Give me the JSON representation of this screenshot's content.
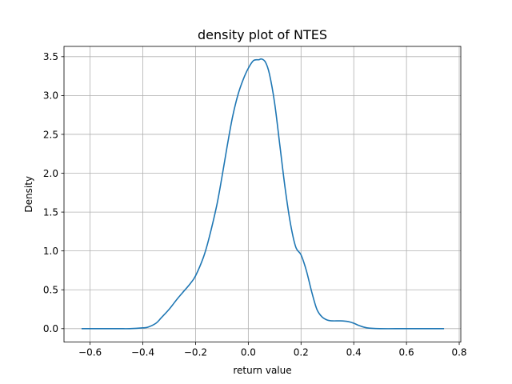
{
  "chart_data": {
    "type": "line",
    "title": "density plot of NTES",
    "xlabel": "return value",
    "ylabel": "Density",
    "xlim": [
      -0.699,
      0.806
    ],
    "ylim": [
      -0.173,
      3.632
    ],
    "xticks": [
      -0.6,
      -0.4,
      -0.2,
      0.0,
      0.2,
      0.4,
      0.6,
      0.8
    ],
    "xtick_labels": [
      "−0.6",
      "−0.4",
      "−0.2",
      "0.0",
      "0.2",
      "0.4",
      "0.6",
      "0.8"
    ],
    "yticks": [
      0.0,
      0.5,
      1.0,
      1.5,
      2.0,
      2.5,
      3.0,
      3.5
    ],
    "ytick_labels": [
      "0.0",
      "0.5",
      "1.0",
      "1.5",
      "2.0",
      "2.5",
      "3.0",
      "3.5"
    ],
    "grid": true,
    "series": [
      {
        "color": "#1f77b4",
        "x": [
          -0.63,
          -0.5,
          -0.45,
          -0.4,
          -0.38,
          -0.35,
          -0.33,
          -0.3,
          -0.27,
          -0.25,
          -0.22,
          -0.2,
          -0.17,
          -0.15,
          -0.12,
          -0.1,
          -0.08,
          -0.06,
          -0.04,
          -0.02,
          0.0,
          0.02,
          0.04,
          0.05,
          0.065,
          0.08,
          0.1,
          0.12,
          0.14,
          0.16,
          0.18,
          0.2,
          0.22,
          0.24,
          0.26,
          0.28,
          0.3,
          0.32,
          0.35,
          0.38,
          0.4,
          0.42,
          0.45,
          0.5,
          0.6,
          0.74
        ],
        "y": [
          0.0,
          0.0,
          0.0,
          0.01,
          0.02,
          0.07,
          0.14,
          0.25,
          0.38,
          0.46,
          0.58,
          0.68,
          0.92,
          1.15,
          1.58,
          1.95,
          2.35,
          2.72,
          3.0,
          3.2,
          3.35,
          3.45,
          3.46,
          3.47,
          3.43,
          3.28,
          2.9,
          2.35,
          1.8,
          1.35,
          1.05,
          0.95,
          0.75,
          0.48,
          0.25,
          0.15,
          0.11,
          0.1,
          0.1,
          0.09,
          0.07,
          0.04,
          0.01,
          0.0,
          0.0,
          0.0
        ]
      }
    ]
  }
}
